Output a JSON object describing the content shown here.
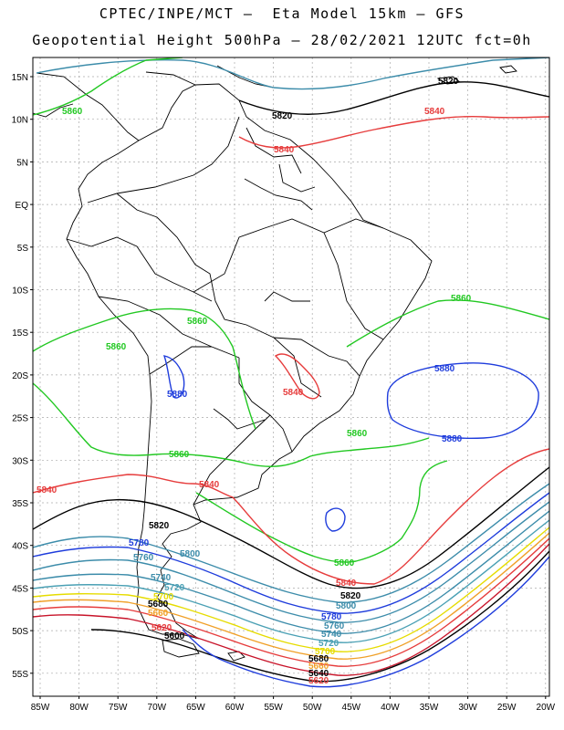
{
  "header": {
    "line1": "CPTEC/INPE/MCT –  Eta Model 15km – GFS",
    "line2": "Geopotential Height 500hPa – 28/02/2021 12UTC fct=0h"
  },
  "map": {
    "lat_ticks": [
      "15N",
      "10N",
      "5N",
      "EQ",
      "5S",
      "10S",
      "15S",
      "20S",
      "25S",
      "30S",
      "35S",
      "40S",
      "45S",
      "50S",
      "55S"
    ],
    "lon_ticks": [
      "85W",
      "80W",
      "75W",
      "70W",
      "65W",
      "60W",
      "55W",
      "50W",
      "45W",
      "40W",
      "35W",
      "30W",
      "25W",
      "20W"
    ]
  },
  "contours": {
    "5860_teal": "5860",
    "5820_top": "5820",
    "5820_mid": "5820",
    "5840_top_right": "5840",
    "5840_venezuela": "5840",
    "5860_atlantic": "5860",
    "5860_bolivia": "5860",
    "5860_pacific": "5860",
    "5880_chile": "5880",
    "5840_paraguay": "5840",
    "5880_atlantic": "5880",
    "5860_south_brazil": "5860",
    "5860_argentina": "5860",
    "5840_pacific": "5840",
    "5840_argentina": "5840",
    "5820_west": "5820",
    "5780_west": "5780",
    "5800_west": "5800",
    "5760_west": "5760",
    "5740_west": "5740",
    "5720_west": "5720",
    "5700_west": "5700",
    "5680_west": "5680",
    "5660_west": "5660",
    "5620_west": "5620",
    "5600_west": "5600",
    "5860_south": "5860",
    "5840_south": "5840",
    "5820_south": "5820",
    "5800_south": "5800",
    "5780_south": "5780",
    "5760_south": "5760",
    "5740_south": "5740",
    "5720_south": "5720",
    "5700_south": "5700",
    "5680_south": "5680",
    "5660_south": "5660",
    "5640_south": "5640",
    "5620_south": "5620"
  },
  "colors": {
    "green": "#22c822",
    "red": "#e63c3c",
    "black": "#000000",
    "blue": "#1e3cdc",
    "teal": "#3c8caa"
  }
}
